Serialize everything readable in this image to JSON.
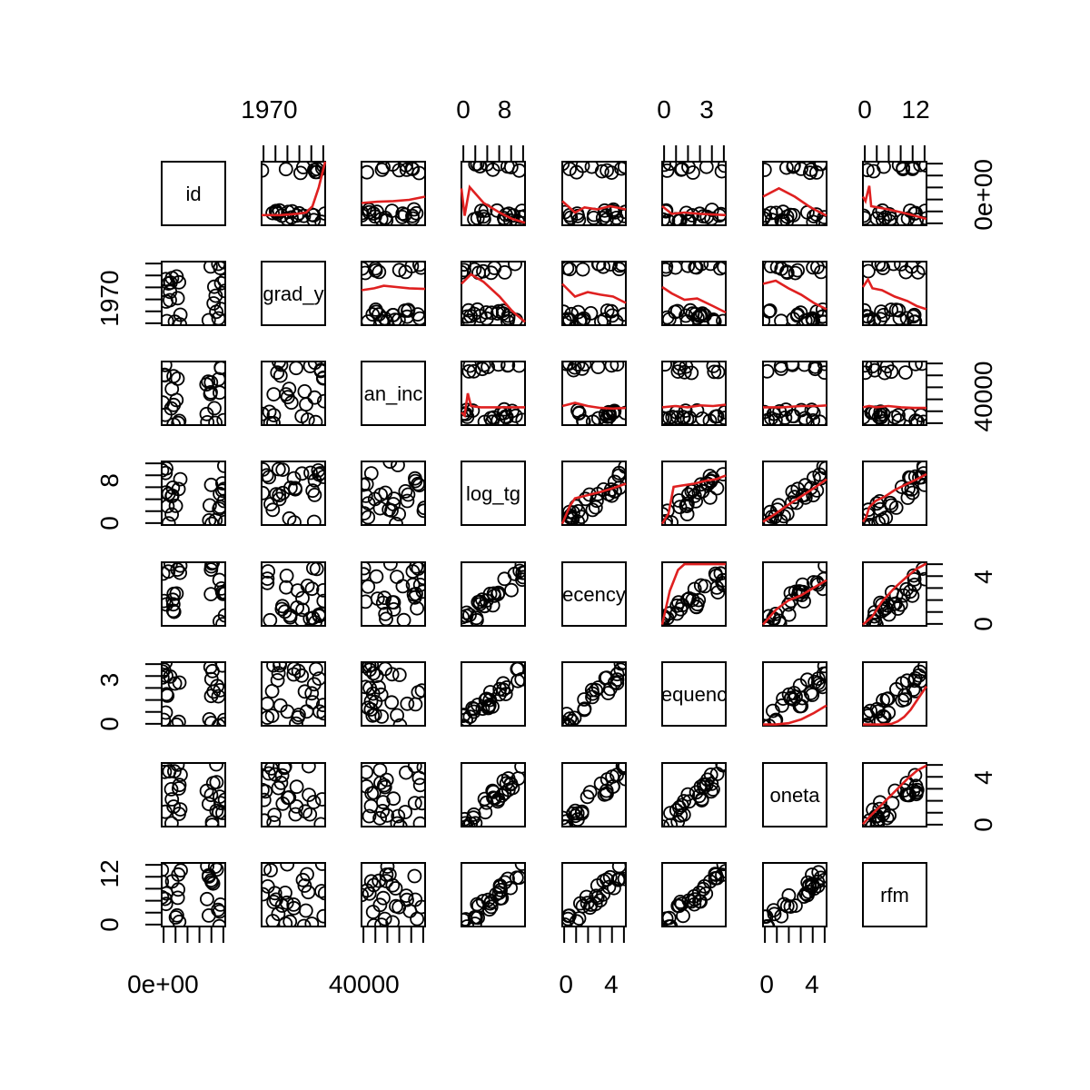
{
  "chart_data": {
    "type": "scatter",
    "kind": "scatterplot-matrix",
    "smoother_color": "#DF2020",
    "point_color": "#000000",
    "grid": false,
    "variables": [
      {
        "name": "id",
        "label": "id"
      },
      {
        "name": "grad_year",
        "label": "grad_y"
      },
      {
        "name": "median_income",
        "label": "an_inc"
      },
      {
        "name": "log_tg",
        "label": "log_tg"
      },
      {
        "name": "recency",
        "label": "ecency"
      },
      {
        "name": "frequency",
        "label": "equenc"
      },
      {
        "name": "monetary",
        "label": "oneta"
      },
      {
        "name": "rfm",
        "label": "rfm"
      }
    ],
    "axis_labels": {
      "top": [
        {
          "panel": 1,
          "ticks": [
            {
              "label": "1970",
              "rel": 0.12
            }
          ]
        },
        {
          "panel": 3,
          "ticks": [
            {
              "label": "0",
              "rel": 0.03
            },
            {
              "label": "8",
              "rel": 0.68
            }
          ]
        },
        {
          "panel": 5,
          "ticks": [
            {
              "label": "0",
              "rel": 0.03
            },
            {
              "label": "3",
              "rel": 0.7
            }
          ]
        },
        {
          "panel": 7,
          "ticks": [
            {
              "label": "0",
              "rel": 0.03
            },
            {
              "label": "12",
              "rel": 0.83
            }
          ]
        }
      ],
      "bottom": [
        {
          "panel": 0,
          "ticks": [
            {
              "label": "0e+00",
              "rel": 0.02
            }
          ]
        },
        {
          "panel": 2,
          "ticks": [
            {
              "label": "40000",
              "rel": 0.04
            }
          ]
        },
        {
          "panel": 4,
          "ticks": [
            {
              "label": "0",
              "rel": 0.06
            },
            {
              "label": "4",
              "rel": 0.77
            }
          ]
        },
        {
          "panel": 6,
          "ticks": [
            {
              "label": "0",
              "rel": 0.06
            },
            {
              "label": "4",
              "rel": 0.77
            }
          ]
        }
      ],
      "left": [
        {
          "panel": 1,
          "ticks": [
            {
              "label": "1970",
              "rel": 0.42
            }
          ]
        },
        {
          "panel": 3,
          "ticks": [
            {
              "label": "0",
              "rel": 0.03
            },
            {
              "label": "8",
              "rel": 0.7
            }
          ]
        },
        {
          "panel": 5,
          "ticks": [
            {
              "label": "0",
              "rel": 0.03
            },
            {
              "label": "3",
              "rel": 0.72
            }
          ]
        },
        {
          "panel": 7,
          "ticks": [
            {
              "label": "0",
              "rel": 0.03
            },
            {
              "label": "12",
              "rel": 0.83
            }
          ]
        }
      ],
      "right": [
        {
          "panel": 0,
          "ticks": [
            {
              "label": "0e+00",
              "rel": 0.48
            }
          ]
        },
        {
          "panel": 2,
          "ticks": [
            {
              "label": "40000",
              "rel": 0.45
            }
          ]
        },
        {
          "panel": 4,
          "ticks": [
            {
              "label": "0",
              "rel": 0.03
            },
            {
              "label": "4",
              "rel": 0.77
            }
          ]
        },
        {
          "panel": 6,
          "ticks": [
            {
              "label": "0",
              "rel": 0.03
            },
            {
              "label": "4",
              "rel": 0.77
            }
          ]
        }
      ]
    },
    "smoothers": [
      {
        "row": 0,
        "col": 1,
        "x": [
          0,
          0.3,
          0.55,
          0.7,
          0.8,
          0.9,
          1.0
        ],
        "y": [
          0.16,
          0.16,
          0.18,
          0.2,
          0.3,
          0.6,
          1.0
        ]
      },
      {
        "row": 0,
        "col": 2,
        "x": [
          0,
          0.25,
          0.5,
          0.75,
          1.0
        ],
        "y": [
          0.35,
          0.37,
          0.38,
          0.4,
          0.45
        ]
      },
      {
        "row": 0,
        "col": 3,
        "x": [
          0,
          0.05,
          0.13,
          0.35,
          0.6,
          0.8,
          1.0
        ],
        "y": [
          0.58,
          0.15,
          0.6,
          0.35,
          0.2,
          0.1,
          0.04
        ]
      },
      {
        "row": 0,
        "col": 4,
        "x": [
          0,
          0.2,
          0.35,
          0.55,
          0.75,
          1.0
        ],
        "y": [
          0.38,
          0.2,
          0.28,
          0.25,
          0.3,
          0.25
        ]
      },
      {
        "row": 0,
        "col": 5,
        "x": [
          0,
          0.15,
          0.35,
          0.6,
          1.0
        ],
        "y": [
          0.3,
          0.18,
          0.2,
          0.18,
          0.16
        ]
      },
      {
        "row": 0,
        "col": 6,
        "x": [
          0,
          0.25,
          0.5,
          0.75,
          1.0
        ],
        "y": [
          0.45,
          0.58,
          0.45,
          0.28,
          0.15
        ]
      },
      {
        "row": 0,
        "col": 7,
        "x": [
          0,
          0.04,
          0.1,
          0.13,
          0.4,
          0.7,
          1.0
        ],
        "y": [
          0.45,
          0.38,
          0.62,
          0.3,
          0.25,
          0.18,
          0.1
        ]
      },
      {
        "row": 1,
        "col": 2,
        "x": [
          0,
          0.2,
          0.35,
          0.55,
          0.75,
          1.0
        ],
        "y": [
          0.55,
          0.58,
          0.62,
          0.6,
          0.58,
          0.57
        ]
      },
      {
        "row": 1,
        "col": 3,
        "x": [
          0,
          0.15,
          0.35,
          0.6,
          0.8,
          1.0
        ],
        "y": [
          0.65,
          0.8,
          0.68,
          0.45,
          0.22,
          0.05
        ]
      },
      {
        "row": 1,
        "col": 4,
        "x": [
          0,
          0.2,
          0.4,
          0.6,
          0.8,
          1.0
        ],
        "y": [
          0.65,
          0.45,
          0.52,
          0.48,
          0.45,
          0.35
        ]
      },
      {
        "row": 1,
        "col": 5,
        "x": [
          0,
          0.15,
          0.35,
          0.55,
          0.8,
          1.0
        ],
        "y": [
          0.6,
          0.5,
          0.4,
          0.42,
          0.3,
          0.2
        ]
      },
      {
        "row": 1,
        "col": 6,
        "x": [
          0,
          0.2,
          0.4,
          0.6,
          0.8,
          1.0
        ],
        "y": [
          0.65,
          0.7,
          0.58,
          0.48,
          0.35,
          0.25
        ]
      },
      {
        "row": 1,
        "col": 7,
        "x": [
          0,
          0.08,
          0.15,
          0.3,
          0.5,
          0.7,
          0.85,
          1.0
        ],
        "y": [
          0.6,
          0.72,
          0.58,
          0.55,
          0.45,
          0.38,
          0.3,
          0.25
        ]
      },
      {
        "row": 2,
        "col": 3,
        "x": [
          0,
          0.05,
          0.1,
          0.15,
          0.3,
          0.6,
          1.0
        ],
        "y": [
          0.2,
          0.15,
          0.5,
          0.3,
          0.28,
          0.28,
          0.28
        ]
      },
      {
        "row": 2,
        "col": 4,
        "x": [
          0,
          0.2,
          0.4,
          0.6,
          0.8,
          1.0
        ],
        "y": [
          0.3,
          0.35,
          0.3,
          0.27,
          0.26,
          0.27
        ]
      },
      {
        "row": 2,
        "col": 5,
        "x": [
          0,
          0.2,
          0.4,
          0.6,
          0.8,
          1.0
        ],
        "y": [
          0.28,
          0.3,
          0.28,
          0.31,
          0.3,
          0.32
        ]
      },
      {
        "row": 2,
        "col": 6,
        "x": [
          0,
          0.3,
          0.6,
          0.85,
          1.0
        ],
        "y": [
          0.28,
          0.28,
          0.3,
          0.3,
          0.31
        ]
      },
      {
        "row": 2,
        "col": 7,
        "x": [
          0,
          0.1,
          0.2,
          0.4,
          0.6,
          0.8,
          1.0
        ],
        "y": [
          0.28,
          0.3,
          0.28,
          0.3,
          0.28,
          0.27,
          0.27
        ]
      },
      {
        "row": 3,
        "col": 4,
        "x": [
          0,
          0.12,
          0.2,
          0.4,
          0.6,
          0.8,
          1.0
        ],
        "y": [
          0.02,
          0.3,
          0.42,
          0.47,
          0.52,
          0.58,
          0.65
        ]
      },
      {
        "row": 3,
        "col": 5,
        "x": [
          0,
          0.1,
          0.18,
          0.3,
          0.5,
          0.7,
          0.85,
          1.0
        ],
        "y": [
          0.02,
          0.18,
          0.6,
          0.62,
          0.65,
          0.7,
          0.72,
          0.78
        ]
      },
      {
        "row": 3,
        "col": 6,
        "x": [
          0,
          0.2,
          0.4,
          0.6,
          0.8,
          1.0
        ],
        "y": [
          0.05,
          0.18,
          0.32,
          0.45,
          0.58,
          0.72
        ]
      },
      {
        "row": 3,
        "col": 7,
        "x": [
          0,
          0.05,
          0.1,
          0.2,
          0.35,
          0.5,
          0.7,
          0.85,
          1.0
        ],
        "y": [
          0.05,
          0.12,
          0.28,
          0.38,
          0.45,
          0.55,
          0.65,
          0.72,
          0.8
        ]
      },
      {
        "row": 4,
        "col": 5,
        "x": [
          0,
          0.12,
          0.25,
          0.35,
          0.6,
          0.8,
          1.0
        ],
        "y": [
          0.02,
          0.55,
          0.88,
          0.97,
          0.97,
          0.97,
          0.97
        ]
      },
      {
        "row": 4,
        "col": 6,
        "x": [
          0,
          0.2,
          0.4,
          0.6,
          0.8,
          1.0
        ],
        "y": [
          0.02,
          0.25,
          0.4,
          0.48,
          0.6,
          0.72
        ]
      },
      {
        "row": 4,
        "col": 7,
        "x": [
          0,
          0.15,
          0.3,
          0.5,
          0.7,
          0.85,
          1.0
        ],
        "y": [
          0.02,
          0.15,
          0.38,
          0.6,
          0.78,
          0.9,
          0.98
        ]
      },
      {
        "row": 5,
        "col": 6,
        "x": [
          0,
          0.2,
          0.4,
          0.6,
          0.8,
          1.0
        ],
        "y": [
          0.02,
          0.02,
          0.04,
          0.1,
          0.2,
          0.32
        ]
      },
      {
        "row": 5,
        "col": 7,
        "x": [
          0,
          0.3,
          0.45,
          0.55,
          0.65,
          0.75,
          0.85,
          1.0
        ],
        "y": [
          0.02,
          0.02,
          0.03,
          0.07,
          0.14,
          0.25,
          0.4,
          0.62
        ]
      },
      {
        "row": 6,
        "col": 7,
        "x": [
          0,
          0.1,
          0.3,
          0.5,
          0.7,
          0.85,
          1.0
        ],
        "y": [
          0.04,
          0.15,
          0.35,
          0.55,
          0.75,
          0.88,
          0.96
        ]
      }
    ]
  }
}
